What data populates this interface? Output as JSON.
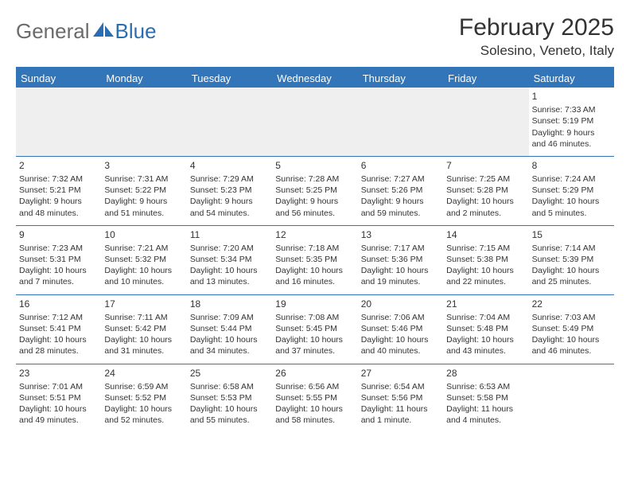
{
  "logo": {
    "general": "General",
    "blue": "Blue"
  },
  "header": {
    "month_title": "February 2025",
    "location": "Solesino, Veneto, Italy"
  },
  "daynames": [
    "Sunday",
    "Monday",
    "Tuesday",
    "Wednesday",
    "Thursday",
    "Friday",
    "Saturday"
  ],
  "styling": {
    "header_bg": "#3275b8",
    "header_text": "#ffffff",
    "border_color": "#3275b8",
    "empty_bg": "#efefef",
    "text_color": "#333333",
    "logo_gray": "#6b6b6b",
    "logo_blue": "#2a6db0",
    "cell_fontsize": 10.5,
    "dayname_fontsize": 13,
    "title_fontsize": 30,
    "location_fontsize": 17
  },
  "weeks": [
    [
      null,
      null,
      null,
      null,
      null,
      null,
      {
        "n": "1",
        "sr": "Sunrise: 7:33 AM",
        "ss": "Sunset: 5:19 PM",
        "d1": "Daylight: 9 hours",
        "d2": "and 46 minutes."
      }
    ],
    [
      {
        "n": "2",
        "sr": "Sunrise: 7:32 AM",
        "ss": "Sunset: 5:21 PM",
        "d1": "Daylight: 9 hours",
        "d2": "and 48 minutes."
      },
      {
        "n": "3",
        "sr": "Sunrise: 7:31 AM",
        "ss": "Sunset: 5:22 PM",
        "d1": "Daylight: 9 hours",
        "d2": "and 51 minutes."
      },
      {
        "n": "4",
        "sr": "Sunrise: 7:29 AM",
        "ss": "Sunset: 5:23 PM",
        "d1": "Daylight: 9 hours",
        "d2": "and 54 minutes."
      },
      {
        "n": "5",
        "sr": "Sunrise: 7:28 AM",
        "ss": "Sunset: 5:25 PM",
        "d1": "Daylight: 9 hours",
        "d2": "and 56 minutes."
      },
      {
        "n": "6",
        "sr": "Sunrise: 7:27 AM",
        "ss": "Sunset: 5:26 PM",
        "d1": "Daylight: 9 hours",
        "d2": "and 59 minutes."
      },
      {
        "n": "7",
        "sr": "Sunrise: 7:25 AM",
        "ss": "Sunset: 5:28 PM",
        "d1": "Daylight: 10 hours",
        "d2": "and 2 minutes."
      },
      {
        "n": "8",
        "sr": "Sunrise: 7:24 AM",
        "ss": "Sunset: 5:29 PM",
        "d1": "Daylight: 10 hours",
        "d2": "and 5 minutes."
      }
    ],
    [
      {
        "n": "9",
        "sr": "Sunrise: 7:23 AM",
        "ss": "Sunset: 5:31 PM",
        "d1": "Daylight: 10 hours",
        "d2": "and 7 minutes."
      },
      {
        "n": "10",
        "sr": "Sunrise: 7:21 AM",
        "ss": "Sunset: 5:32 PM",
        "d1": "Daylight: 10 hours",
        "d2": "and 10 minutes."
      },
      {
        "n": "11",
        "sr": "Sunrise: 7:20 AM",
        "ss": "Sunset: 5:34 PM",
        "d1": "Daylight: 10 hours",
        "d2": "and 13 minutes."
      },
      {
        "n": "12",
        "sr": "Sunrise: 7:18 AM",
        "ss": "Sunset: 5:35 PM",
        "d1": "Daylight: 10 hours",
        "d2": "and 16 minutes."
      },
      {
        "n": "13",
        "sr": "Sunrise: 7:17 AM",
        "ss": "Sunset: 5:36 PM",
        "d1": "Daylight: 10 hours",
        "d2": "and 19 minutes."
      },
      {
        "n": "14",
        "sr": "Sunrise: 7:15 AM",
        "ss": "Sunset: 5:38 PM",
        "d1": "Daylight: 10 hours",
        "d2": "and 22 minutes."
      },
      {
        "n": "15",
        "sr": "Sunrise: 7:14 AM",
        "ss": "Sunset: 5:39 PM",
        "d1": "Daylight: 10 hours",
        "d2": "and 25 minutes."
      }
    ],
    [
      {
        "n": "16",
        "sr": "Sunrise: 7:12 AM",
        "ss": "Sunset: 5:41 PM",
        "d1": "Daylight: 10 hours",
        "d2": "and 28 minutes."
      },
      {
        "n": "17",
        "sr": "Sunrise: 7:11 AM",
        "ss": "Sunset: 5:42 PM",
        "d1": "Daylight: 10 hours",
        "d2": "and 31 minutes."
      },
      {
        "n": "18",
        "sr": "Sunrise: 7:09 AM",
        "ss": "Sunset: 5:44 PM",
        "d1": "Daylight: 10 hours",
        "d2": "and 34 minutes."
      },
      {
        "n": "19",
        "sr": "Sunrise: 7:08 AM",
        "ss": "Sunset: 5:45 PM",
        "d1": "Daylight: 10 hours",
        "d2": "and 37 minutes."
      },
      {
        "n": "20",
        "sr": "Sunrise: 7:06 AM",
        "ss": "Sunset: 5:46 PM",
        "d1": "Daylight: 10 hours",
        "d2": "and 40 minutes."
      },
      {
        "n": "21",
        "sr": "Sunrise: 7:04 AM",
        "ss": "Sunset: 5:48 PM",
        "d1": "Daylight: 10 hours",
        "d2": "and 43 minutes."
      },
      {
        "n": "22",
        "sr": "Sunrise: 7:03 AM",
        "ss": "Sunset: 5:49 PM",
        "d1": "Daylight: 10 hours",
        "d2": "and 46 minutes."
      }
    ],
    [
      {
        "n": "23",
        "sr": "Sunrise: 7:01 AM",
        "ss": "Sunset: 5:51 PM",
        "d1": "Daylight: 10 hours",
        "d2": "and 49 minutes."
      },
      {
        "n": "24",
        "sr": "Sunrise: 6:59 AM",
        "ss": "Sunset: 5:52 PM",
        "d1": "Daylight: 10 hours",
        "d2": "and 52 minutes."
      },
      {
        "n": "25",
        "sr": "Sunrise: 6:58 AM",
        "ss": "Sunset: 5:53 PM",
        "d1": "Daylight: 10 hours",
        "d2": "and 55 minutes."
      },
      {
        "n": "26",
        "sr": "Sunrise: 6:56 AM",
        "ss": "Sunset: 5:55 PM",
        "d1": "Daylight: 10 hours",
        "d2": "and 58 minutes."
      },
      {
        "n": "27",
        "sr": "Sunrise: 6:54 AM",
        "ss": "Sunset: 5:56 PM",
        "d1": "Daylight: 11 hours",
        "d2": "and 1 minute."
      },
      {
        "n": "28",
        "sr": "Sunrise: 6:53 AM",
        "ss": "Sunset: 5:58 PM",
        "d1": "Daylight: 11 hours",
        "d2": "and 4 minutes."
      },
      null
    ]
  ]
}
